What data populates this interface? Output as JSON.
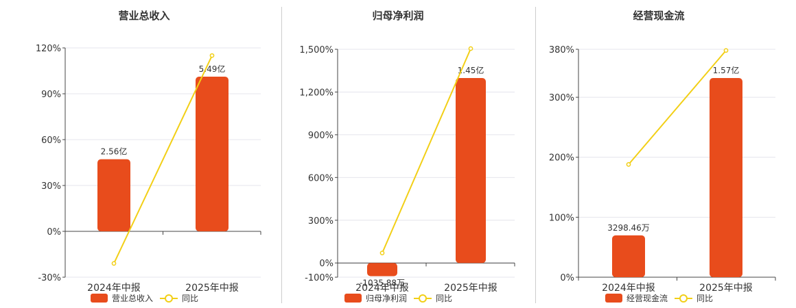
{
  "colors": {
    "bar": "#E84C1C",
    "line": "#F2CF16",
    "grid": "#E4E4EC",
    "axis": "#444444"
  },
  "chart_data": [
    {
      "type": "bar",
      "title": "营业总收入",
      "categories": [
        "2024年中报",
        "2025年中报"
      ],
      "series": [
        {
          "name": "营业总收入",
          "type": "bar",
          "values": [
            2.56,
            5.49
          ],
          "labels": [
            "2.56亿",
            "5.49亿"
          ]
        },
        {
          "name": "同比",
          "type": "line",
          "values": [
            -21,
            115
          ]
        }
      ],
      "yticks": [
        "-30%",
        "0%",
        "30%",
        "60%",
        "90%",
        "120%"
      ],
      "ylim": [
        -30,
        120
      ],
      "legend": "bottom",
      "grid": true
    },
    {
      "type": "bar",
      "title": "归母净利润",
      "categories": [
        "2024年中报",
        "2025年中报"
      ],
      "series": [
        {
          "name": "归母净利润",
          "type": "bar",
          "values": [
            -0.1036,
            1.45
          ],
          "labels": [
            "-1035.88万",
            "1.45亿"
          ]
        },
        {
          "name": "同比",
          "type": "line",
          "values": [
            70,
            1505
          ]
        }
      ],
      "yticks": [
        "-100%",
        "0%",
        "300%",
        "600%",
        "900%",
        "1,200%",
        "1,500%"
      ],
      "ylim": [
        -100,
        1500
      ],
      "legend": "bottom",
      "grid": true
    },
    {
      "type": "bar",
      "title": "经营现金流",
      "categories": [
        "2024年中报",
        "2025年中报"
      ],
      "series": [
        {
          "name": "经营现金流",
          "type": "bar",
          "values": [
            0.3298,
            1.57
          ],
          "labels": [
            "3298.46万",
            "1.57亿"
          ]
        },
        {
          "name": "同比",
          "type": "line",
          "values": [
            188,
            378
          ]
        }
      ],
      "yticks": [
        "0%",
        "100%",
        "200%",
        "300%",
        "380%"
      ],
      "ylim": [
        0,
        380
      ],
      "legend": "bottom",
      "grid": true
    }
  ]
}
